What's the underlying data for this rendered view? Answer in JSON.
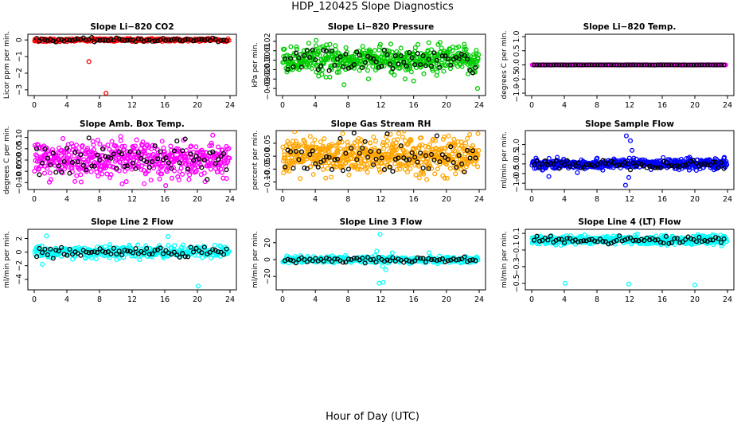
{
  "title": "HDP_120425  Slope Diagnostics",
  "xlabel": "Hour of Day (UTC)",
  "chart_data": [
    {
      "type": "scatter",
      "title": "Slope Li−820 CO2",
      "ylabel": "Licor ppm per min.",
      "color": "#ff0000",
      "xlim": [
        0,
        24
      ],
      "ylim": [
        -3.2,
        0.2
      ],
      "yticks": [
        0,
        -1,
        -2,
        -3
      ],
      "ytick_labels": [
        "0",
        "−1",
        "−2",
        "−3"
      ],
      "xticks": [
        0,
        4,
        8,
        12,
        16,
        20,
        24
      ],
      "scatter": {
        "n": 240,
        "center": 0,
        "spread": 0.06,
        "extreme": 0.1
      },
      "outliers": [
        {
          "x": 6.7,
          "y": -1.3
        },
        {
          "x": 8.8,
          "y": -3.2
        },
        {
          "x": 0.1,
          "y": 0.05
        }
      ]
    },
    {
      "type": "scatter",
      "title": "Slope Li−820 Pressure",
      "ylabel": "kPa per min.",
      "color": "#00cc00",
      "xlim": [
        0,
        24
      ],
      "ylim": [
        -0.035,
        0.025
      ],
      "yticks": [
        0.02,
        0.01,
        0.0,
        -0.01,
        -0.02,
        -0.03
      ],
      "ytick_labels": [
        "0.02",
        "0.01",
        "0.00",
        "−0.01",
        "−0.02",
        "−0.03"
      ],
      "xticks": [
        0,
        4,
        8,
        12,
        16,
        20,
        24
      ],
      "scatter": {
        "n": 520,
        "center": 0,
        "spread": 0.007,
        "extreme": 0.02
      },
      "outliers": [
        {
          "x": 5.3,
          "y": -0.018
        },
        {
          "x": 7.5,
          "y": -0.026
        },
        {
          "x": 16.0,
          "y": -0.022
        },
        {
          "x": 23.8,
          "y": -0.03
        },
        {
          "x": 3.2,
          "y": 0.018
        },
        {
          "x": 4.1,
          "y": 0.021
        }
      ]
    },
    {
      "type": "scatter",
      "title": "Slope Li−820 Temp.",
      "ylabel": "degrees C per min.",
      "color": "#ff00ff",
      "xlim": [
        0,
        24
      ],
      "ylim": [
        -1.0,
        1.0
      ],
      "yticks": [
        1.0,
        0.5,
        0.0,
        -0.5,
        -1.0
      ],
      "ytick_labels": [
        "1.0",
        "0.5",
        "0.0",
        "−0.5",
        "−1.0"
      ],
      "xticks": [
        0,
        4,
        8,
        12,
        16,
        20,
        24
      ],
      "scatter": {
        "n": 160,
        "center": 0,
        "spread": 0.003,
        "extreme": 0.005
      },
      "outliers": []
    },
    {
      "type": "scatter",
      "title": "Slope Amb. Box Temp.",
      "ylabel": "degrees C per min.",
      "color": "#ff00ff",
      "xlim": [
        0,
        24
      ],
      "ylim": [
        -0.12,
        0.12
      ],
      "yticks": [
        0.1,
        0.05,
        0.0,
        -0.05,
        -0.1
      ],
      "ytick_labels": [
        "0.10",
        "0.05",
        "0.00",
        "−0.05",
        "−0.10"
      ],
      "xticks": [
        0,
        4,
        8,
        12,
        16,
        20,
        24
      ],
      "scatter": {
        "n": 520,
        "center": 0,
        "spread": 0.04,
        "extreme": 0.115
      },
      "outliers": []
    },
    {
      "type": "scatter",
      "title": "Slope Gas Stream RH",
      "ylabel": "percent per min.",
      "color": "#ffa500",
      "xlim": [
        0,
        24
      ],
      "ylim": [
        -0.12,
        0.09
      ],
      "yticks": [
        0.05,
        0.0,
        -0.05,
        -0.1
      ],
      "ytick_labels": [
        "0.05",
        "0.00",
        "−0.05",
        "−0.10"
      ],
      "xticks": [
        0,
        4,
        8,
        12,
        16,
        20,
        24
      ],
      "scatter": {
        "n": 620,
        "center": 0,
        "spread": 0.035,
        "extreme": 0.1
      },
      "outliers": []
    },
    {
      "type": "scatter",
      "title": "Slope Sample Flow",
      "ylabel": "ml/min per min.",
      "color": "#0000ff",
      "xlim": [
        0,
        24
      ],
      "ylim": [
        -1.2,
        1.6
      ],
      "yticks": [
        1.0,
        0.5,
        0.0,
        -0.5,
        -1.0
      ],
      "ytick_labels": [
        "1.0",
        "0.5",
        "0.0",
        "−0.5",
        "−1.0"
      ],
      "xticks": [
        0,
        4,
        8,
        12,
        16,
        20,
        24
      ],
      "scatter": {
        "n": 560,
        "center": 0,
        "spread": 0.12,
        "extreme": 0.35
      },
      "outliers": [
        {
          "x": 11.6,
          "y": 1.45
        },
        {
          "x": 12.1,
          "y": 1.2
        },
        {
          "x": 11.5,
          "y": -1.1
        },
        {
          "x": 12.3,
          "y": 0.7
        },
        {
          "x": 2.1,
          "y": -0.65
        },
        {
          "x": 5.6,
          "y": -0.45
        },
        {
          "x": 11.9,
          "y": -0.7
        }
      ]
    },
    {
      "type": "scatter",
      "title": "Slope Line 2 Flow",
      "ylabel": "ml/min per min.",
      "color": "#00ffff",
      "xlim": [
        0,
        24
      ],
      "ylim": [
        -5.2,
        3.0
      ],
      "yticks": [
        2,
        0,
        -2,
        -4
      ],
      "ytick_labels": [
        "2",
        "0",
        "−2",
        "−4"
      ],
      "xticks": [
        0,
        4,
        8,
        12,
        16,
        20,
        24
      ],
      "scatter": {
        "n": 340,
        "center": 0,
        "spread": 0.45,
        "extreme": 1.4
      },
      "outliers": [
        {
          "x": 1.5,
          "y": 2.4
        },
        {
          "x": 1.0,
          "y": -1.8
        },
        {
          "x": 16.4,
          "y": 2.3
        },
        {
          "x": 20.1,
          "y": -5.0
        }
      ]
    },
    {
      "type": "scatter",
      "title": "Slope Line 3 Flow",
      "ylabel": "ml/min per min.",
      "color": "#00ffff",
      "xlim": [
        0,
        24
      ],
      "ylim": [
        -33,
        33
      ],
      "yticks": [
        20,
        0,
        -20
      ],
      "ytick_labels": [
        "20",
        "0",
        "−20"
      ],
      "xticks": [
        0,
        4,
        8,
        12,
        16,
        20,
        24
      ],
      "scatter": {
        "n": 300,
        "center": 0,
        "spread": 2.0,
        "extreme": 5.0
      },
      "outliers": [
        {
          "x": 11.9,
          "y": 30
        },
        {
          "x": 11.8,
          "y": -28
        },
        {
          "x": 12.3,
          "y": -27
        },
        {
          "x": 12.6,
          "y": -12
        },
        {
          "x": 11.5,
          "y": 10
        },
        {
          "x": 13.4,
          "y": 8
        },
        {
          "x": 17.9,
          "y": 8
        },
        {
          "x": 12.2,
          "y": -8
        }
      ]
    },
    {
      "type": "scatter",
      "title": "Slope Line 4 (LT) Flow",
      "ylabel": "ml/min per min.",
      "color": "#00ffff",
      "xlim": [
        0,
        24
      ],
      "ylim": [
        -0.55,
        0.12
      ],
      "yticks": [
        0.1,
        -0.1,
        -0.3,
        -0.5
      ],
      "ytick_labels": [
        "0.1",
        "−0.1",
        "−0.3",
        "−0.5"
      ],
      "xticks": [
        0,
        4,
        8,
        12,
        16,
        20,
        24
      ],
      "scatter": {
        "n": 460,
        "center": 0.02,
        "spread": 0.025,
        "extreme": 0.08
      },
      "outliers": [
        {
          "x": 4.1,
          "y": -0.5
        },
        {
          "x": 11.9,
          "y": -0.51
        },
        {
          "x": 20.0,
          "y": -0.52
        }
      ]
    }
  ]
}
